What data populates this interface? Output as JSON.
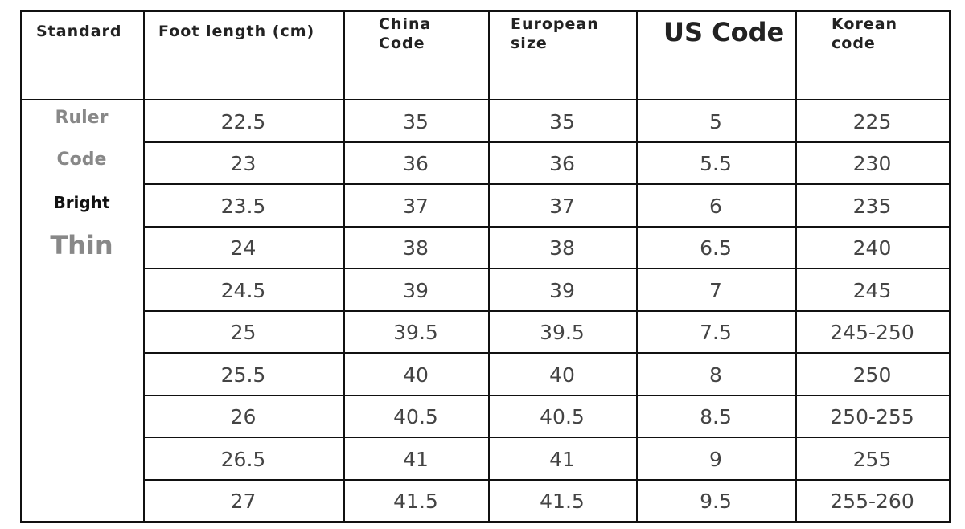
{
  "header": [
    "Standard",
    "Foot length (cm)",
    "China\nCode",
    "European\nsize",
    "US Code",
    "Korean\ncode"
  ],
  "side_labels": [
    "Ruler",
    "Code",
    "Bright",
    "Thin"
  ],
  "rows": [
    [
      "22.5",
      "35",
      "35",
      "5",
      "225"
    ],
    [
      "23",
      "36",
      "36",
      "5.5",
      "230"
    ],
    [
      "23.5",
      "37",
      "37",
      "6",
      "235"
    ],
    [
      "24",
      "38",
      "38",
      "6.5",
      "240"
    ],
    [
      "24.5",
      "39",
      "39",
      "7",
      "245"
    ],
    [
      "25",
      "39.5",
      "39.5",
      "7.5",
      "245-250"
    ],
    [
      "25.5",
      "40",
      "40",
      "8",
      "250"
    ],
    [
      "26",
      "40.5",
      "40.5",
      "8.5",
      "250-255"
    ],
    [
      "26.5",
      "41",
      "41",
      "9",
      "255"
    ],
    [
      "27",
      "41.5",
      "41.5",
      "9.5",
      "255-260"
    ]
  ]
}
